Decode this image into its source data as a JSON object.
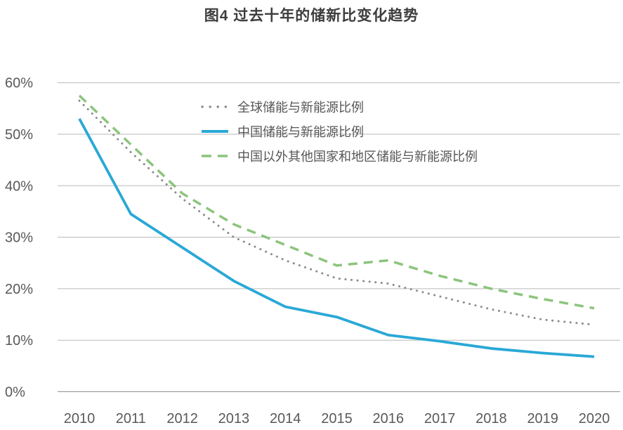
{
  "title": {
    "text": "图4 过去十年的储新比变化趋势",
    "color": "#3d3d3d"
  },
  "axis": {
    "text_color": "#595959",
    "grid_color": "#bababa",
    "axis_line_color": "#8f8f8f",
    "y_tick_labels": [
      "0%",
      "10%",
      "20%",
      "30%",
      "40%",
      "50%",
      "60%"
    ],
    "x_tick_labels": [
      "2010",
      "2011",
      "2012",
      "2013",
      "2014",
      "2015",
      "2016",
      "2017",
      "2018",
      "2019",
      "2020"
    ]
  },
  "chart_data": {
    "type": "line",
    "title": "图4 过去十年的储新比变化趋势",
    "x": [
      "2010",
      "2011",
      "2012",
      "2013",
      "2014",
      "2015",
      "2016",
      "2017",
      "2018",
      "2019",
      "2020"
    ],
    "series": [
      {
        "name": "全球储能与新能源比例",
        "style": "dotted",
        "color": "#8c8c8c",
        "values": [
          56.5,
          46.5,
          37.5,
          30,
          25.5,
          22,
          21,
          18.5,
          16,
          14,
          13
        ]
      },
      {
        "name": "中国储能与新能源比例",
        "style": "solid",
        "color": "#29a8d6",
        "values": [
          53,
          34.5,
          28,
          21.5,
          16.5,
          14.5,
          11,
          9.8,
          8.4,
          7.5,
          6.8
        ]
      },
      {
        "name": "中国以外其他国家和地区储能与新能源比例",
        "style": "dashed",
        "color": "#8cc47c",
        "values": [
          57.5,
          48,
          38.5,
          32.5,
          28.5,
          24.5,
          25.5,
          22.5,
          20,
          18,
          16.2
        ]
      }
    ],
    "ylim": [
      0,
      60
    ],
    "ytick_step": 10,
    "ytick_suffix": "%",
    "grid": true,
    "legend_position": "inside-top-left"
  }
}
